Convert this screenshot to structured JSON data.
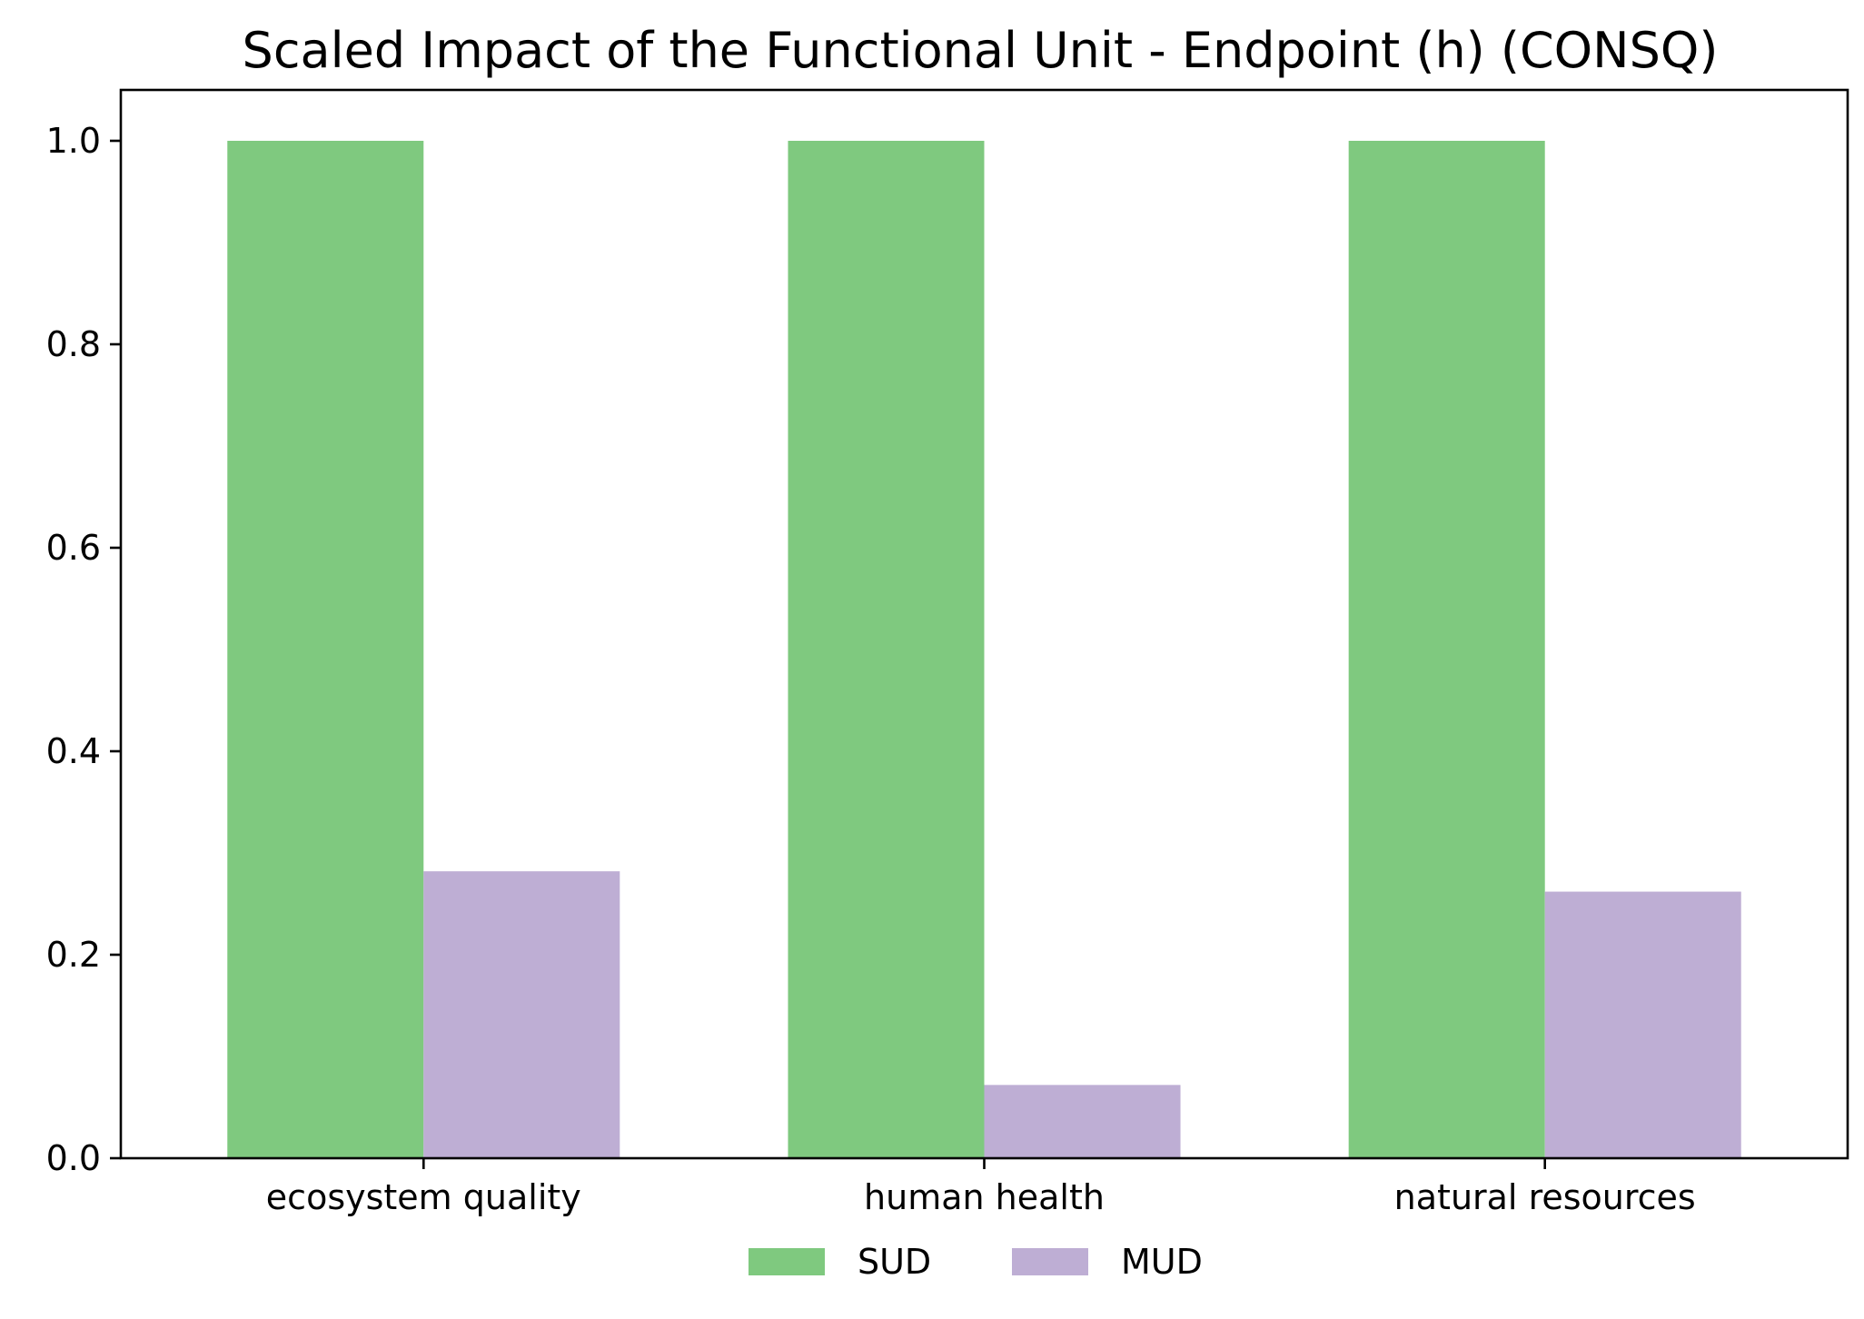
{
  "chart_data": {
    "type": "bar",
    "title": "Scaled Impact of the Functional Unit - Endpoint (h) (CONSQ)",
    "xlabel": "",
    "ylabel": "",
    "categories": [
      "ecosystem quality",
      "human health",
      "natural resources"
    ],
    "series": [
      {
        "name": "SUD",
        "color": "#7fc97f",
        "values": [
          1.0,
          1.0,
          1.0
        ]
      },
      {
        "name": "MUD",
        "color": "#beaed4",
        "values": [
          0.282,
          0.072,
          0.262
        ]
      }
    ],
    "ylim": [
      0,
      1.05
    ],
    "yticks": [
      0.0,
      0.2,
      0.4,
      0.6,
      0.8,
      1.0
    ],
    "ytick_labels": [
      "0.0",
      "0.2",
      "0.4",
      "0.6",
      "0.8",
      "1.0"
    ],
    "grid": false,
    "legend": {
      "placement": "bottom-center",
      "ncol": 2,
      "frame": false
    }
  }
}
